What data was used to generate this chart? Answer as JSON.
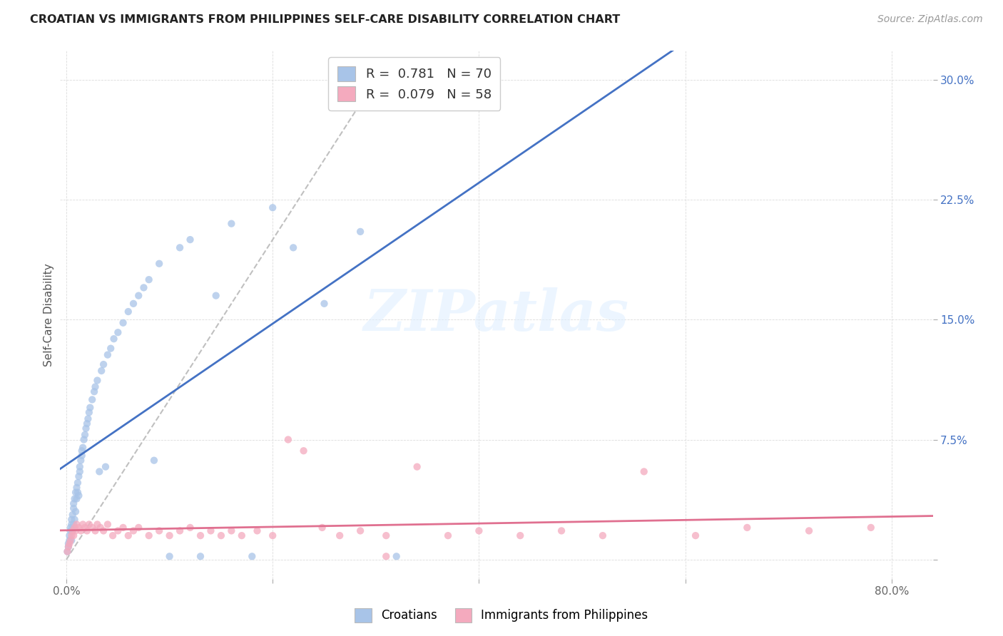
{
  "title": "CROATIAN VS IMMIGRANTS FROM PHILIPPINES SELF-CARE DISABILITY CORRELATION CHART",
  "source": "Source: ZipAtlas.com",
  "ylabel": "Self-Care Disability",
  "r_croatian": 0.781,
  "n_croatian": 70,
  "r_philippines": 0.079,
  "n_philippines": 58,
  "blue_scatter_color": "#a8c4e8",
  "pink_scatter_color": "#f4aabe",
  "blue_line_color": "#4472c4",
  "pink_line_color": "#e07090",
  "diagonal_color": "#c0c0c0",
  "xlim": [
    -0.006,
    0.84
  ],
  "ylim": [
    -0.012,
    0.318
  ],
  "xticks": [
    0.0,
    0.2,
    0.4,
    0.6,
    0.8
  ],
  "yticks": [
    0.0,
    0.075,
    0.15,
    0.225,
    0.3
  ],
  "xticklabels": [
    "0.0%",
    "",
    "",
    "",
    "80.0%"
  ],
  "yticklabels": [
    "",
    "7.5%",
    "15.0%",
    "22.5%",
    "30.0%"
  ],
  "grid_color": "#d8d8d8",
  "watermark": "ZIPatlas",
  "croatians_x": [
    0.001,
    0.002,
    0.002,
    0.003,
    0.003,
    0.004,
    0.004,
    0.005,
    0.005,
    0.005,
    0.006,
    0.006,
    0.007,
    0.007,
    0.007,
    0.008,
    0.008,
    0.009,
    0.009,
    0.01,
    0.01,
    0.011,
    0.011,
    0.012,
    0.012,
    0.013,
    0.013,
    0.014,
    0.015,
    0.015,
    0.016,
    0.017,
    0.018,
    0.019,
    0.02,
    0.021,
    0.022,
    0.023,
    0.025,
    0.027,
    0.028,
    0.03,
    0.032,
    0.034,
    0.036,
    0.038,
    0.04,
    0.043,
    0.046,
    0.05,
    0.055,
    0.06,
    0.065,
    0.07,
    0.075,
    0.08,
    0.085,
    0.09,
    0.1,
    0.11,
    0.12,
    0.13,
    0.145,
    0.16,
    0.18,
    0.2,
    0.22,
    0.25,
    0.285,
    0.32
  ],
  "croatians_y": [
    0.005,
    0.008,
    0.01,
    0.012,
    0.015,
    0.018,
    0.02,
    0.012,
    0.022,
    0.025,
    0.018,
    0.028,
    0.022,
    0.032,
    0.035,
    0.025,
    0.038,
    0.042,
    0.03,
    0.038,
    0.045,
    0.042,
    0.048,
    0.052,
    0.04,
    0.055,
    0.058,
    0.062,
    0.065,
    0.068,
    0.07,
    0.075,
    0.078,
    0.082,
    0.085,
    0.088,
    0.092,
    0.095,
    0.1,
    0.105,
    0.108,
    0.112,
    0.055,
    0.118,
    0.122,
    0.058,
    0.128,
    0.132,
    0.138,
    0.142,
    0.148,
    0.155,
    0.16,
    0.165,
    0.17,
    0.175,
    0.062,
    0.185,
    0.002,
    0.195,
    0.2,
    0.002,
    0.165,
    0.21,
    0.002,
    0.22,
    0.195,
    0.16,
    0.205,
    0.002
  ],
  "philippines_x": [
    0.001,
    0.002,
    0.003,
    0.004,
    0.005,
    0.006,
    0.007,
    0.008,
    0.009,
    0.01,
    0.012,
    0.014,
    0.016,
    0.018,
    0.02,
    0.022,
    0.025,
    0.028,
    0.03,
    0.033,
    0.036,
    0.04,
    0.045,
    0.05,
    0.055,
    0.06,
    0.065,
    0.07,
    0.08,
    0.09,
    0.1,
    0.11,
    0.12,
    0.13,
    0.14,
    0.15,
    0.16,
    0.17,
    0.185,
    0.2,
    0.215,
    0.23,
    0.248,
    0.265,
    0.285,
    0.31,
    0.34,
    0.37,
    0.4,
    0.44,
    0.48,
    0.52,
    0.56,
    0.61,
    0.66,
    0.72,
    0.78,
    0.31
  ],
  "philippines_y": [
    0.005,
    0.008,
    0.01,
    0.012,
    0.015,
    0.018,
    0.015,
    0.02,
    0.018,
    0.022,
    0.02,
    0.018,
    0.022,
    0.02,
    0.018,
    0.022,
    0.02,
    0.018,
    0.022,
    0.02,
    0.018,
    0.022,
    0.015,
    0.018,
    0.02,
    0.015,
    0.018,
    0.02,
    0.015,
    0.018,
    0.015,
    0.018,
    0.02,
    0.015,
    0.018,
    0.015,
    0.018,
    0.015,
    0.018,
    0.015,
    0.075,
    0.068,
    0.02,
    0.015,
    0.018,
    0.015,
    0.058,
    0.015,
    0.018,
    0.015,
    0.018,
    0.015,
    0.055,
    0.015,
    0.02,
    0.018,
    0.02,
    0.002
  ]
}
